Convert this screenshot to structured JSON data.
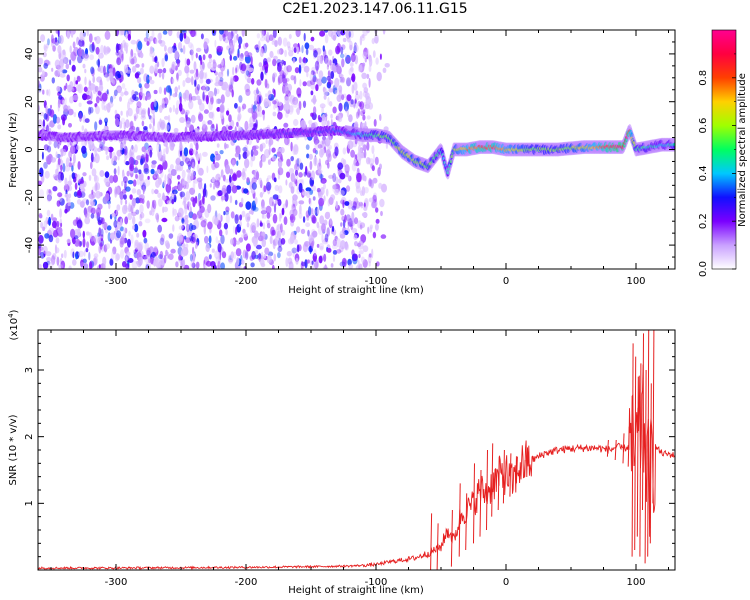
{
  "title": "C2E1.2023.147.06.11.G15",
  "chart_data": [
    {
      "type": "heatmap",
      "xlabel": "Height of straight line (km)",
      "ylabel": "Frequency (Hz)",
      "xlim": [
        -360,
        130
      ],
      "ylim": [
        -50,
        50
      ],
      "xticks": [
        -300,
        -200,
        -100,
        0,
        100
      ],
      "yticks": [
        -40,
        -20,
        0,
        20,
        40
      ],
      "colorbar": {
        "label": "Normalized spectral amplitude",
        "range": [
          0.0,
          1.0
        ],
        "ticks": [
          "0.0",
          "0.2",
          "0.4",
          "0.6",
          "0.8"
        ],
        "colors": [
          "#ffffff",
          "#c9a0ff",
          "#7a00ff",
          "#1010ff",
          "#00c8ff",
          "#00ff60",
          "#a0ff00",
          "#ffd000",
          "#ff4000",
          "#ff0040",
          "#ff0090"
        ]
      },
      "noise_region_x": [
        -360,
        -100
      ],
      "ridge": {
        "x": [
          -360,
          -340,
          -300,
          -260,
          -200,
          -160,
          -130,
          -110,
          -100,
          -90,
          -80,
          -70,
          -60,
          -50,
          -45,
          -40,
          -30,
          -20,
          -10,
          0,
          20,
          40,
          60,
          80,
          90,
          95,
          100,
          110,
          120,
          130
        ],
        "y": [
          6,
          5,
          6,
          5,
          6,
          7,
          8,
          6,
          6,
          5,
          -1,
          -5,
          -7,
          0,
          -10,
          0,
          0,
          1,
          1,
          0,
          0,
          0,
          1,
          1,
          1,
          8,
          0,
          1,
          2,
          2
        ],
        "amplitude": [
          0.15,
          0.15,
          0.15,
          0.15,
          0.2,
          0.25,
          0.3,
          0.45,
          0.5,
          0.55,
          0.6,
          0.6,
          0.55,
          0.45,
          0.4,
          0.6,
          0.75,
          0.8,
          0.8,
          0.7,
          0.55,
          0.55,
          0.65,
          0.85,
          0.9,
          0.8,
          0.5,
          0.45,
          0.4,
          0.45
        ]
      }
    },
    {
      "type": "line",
      "xlabel": "Height of straight line (km)",
      "ylabel": "SNR (10 * v/v)",
      "y_multiplier": "(x10^4)",
      "xlim": [
        -360,
        130
      ],
      "ylim": [
        0,
        3.6
      ],
      "xticks": [
        -300,
        -200,
        -100,
        0,
        100
      ],
      "yticks": [
        1,
        2,
        3
      ],
      "series": [
        {
          "color": "#e62020",
          "x": [
            -360,
            -300,
            -200,
            -150,
            -120,
            -100,
            -90,
            -80,
            -70,
            -60,
            -50,
            -45,
            -40,
            -35,
            -30,
            -25,
            -20,
            -15,
            -10,
            -5,
            0,
            5,
            10,
            15,
            20,
            25,
            30,
            40,
            50,
            60,
            70,
            80,
            85,
            90,
            95,
            100,
            105,
            110,
            115,
            120,
            130
          ],
          "y": [
            0.03,
            0.03,
            0.04,
            0.05,
            0.06,
            0.08,
            0.12,
            0.15,
            0.18,
            0.25,
            0.35,
            0.6,
            0.45,
            0.8,
            0.9,
            1.0,
            1.2,
            1.15,
            1.3,
            1.4,
            1.45,
            1.3,
            1.55,
            1.6,
            1.65,
            1.7,
            1.75,
            1.8,
            1.82,
            1.83,
            1.83,
            1.8,
            1.85,
            1.82,
            1.85,
            1.75,
            2.3,
            1.3,
            1.85,
            1.75,
            1.72
          ]
        }
      ],
      "spikes": [
        {
          "x": -58,
          "lo": 0.0,
          "hi": 0.85
        },
        {
          "x": -53,
          "lo": 0.0,
          "hi": 0.7
        },
        {
          "x": -42,
          "lo": 0.05,
          "hi": 0.9
        },
        {
          "x": -36,
          "lo": 0.2,
          "hi": 1.3
        },
        {
          "x": -31,
          "lo": 0.3,
          "hi": 1.15
        },
        {
          "x": -25,
          "lo": 0.4,
          "hi": 1.6
        },
        {
          "x": -20,
          "lo": 0.5,
          "hi": 1.5
        },
        {
          "x": -15,
          "lo": 0.6,
          "hi": 1.8
        },
        {
          "x": -11,
          "lo": 0.8,
          "hi": 1.9
        },
        {
          "x": -6,
          "lo": 0.9,
          "hi": 1.7
        },
        {
          "x": -2,
          "lo": 1.0,
          "hi": 1.8
        },
        {
          "x": 3,
          "lo": 1.1,
          "hi": 1.75
        },
        {
          "x": 8,
          "lo": 1.3,
          "hi": 1.7
        },
        {
          "x": 14,
          "lo": 1.4,
          "hi": 1.65
        },
        {
          "x": 78,
          "lo": 1.7,
          "hi": 1.95
        },
        {
          "x": 84,
          "lo": 1.65,
          "hi": 1.95
        },
        {
          "x": 90,
          "lo": 1.6,
          "hi": 2.05
        },
        {
          "x": 94,
          "lo": 1.55,
          "hi": 2.15
        },
        {
          "x": 97,
          "lo": 0.2,
          "hi": 3.4
        },
        {
          "x": 99,
          "lo": 0.3,
          "hi": 3.2
        },
        {
          "x": 101,
          "lo": 0.5,
          "hi": 2.9
        },
        {
          "x": 103,
          "lo": 0.2,
          "hi": 3.1
        },
        {
          "x": 105,
          "lo": 0.9,
          "hi": 3.55
        },
        {
          "x": 107,
          "lo": 0.1,
          "hi": 3.0
        },
        {
          "x": 109,
          "lo": 0.2,
          "hi": 3.6
        },
        {
          "x": 111,
          "lo": 0.4,
          "hi": 2.8
        },
        {
          "x": 113,
          "lo": 1.0,
          "hi": 3.6
        }
      ]
    }
  ]
}
